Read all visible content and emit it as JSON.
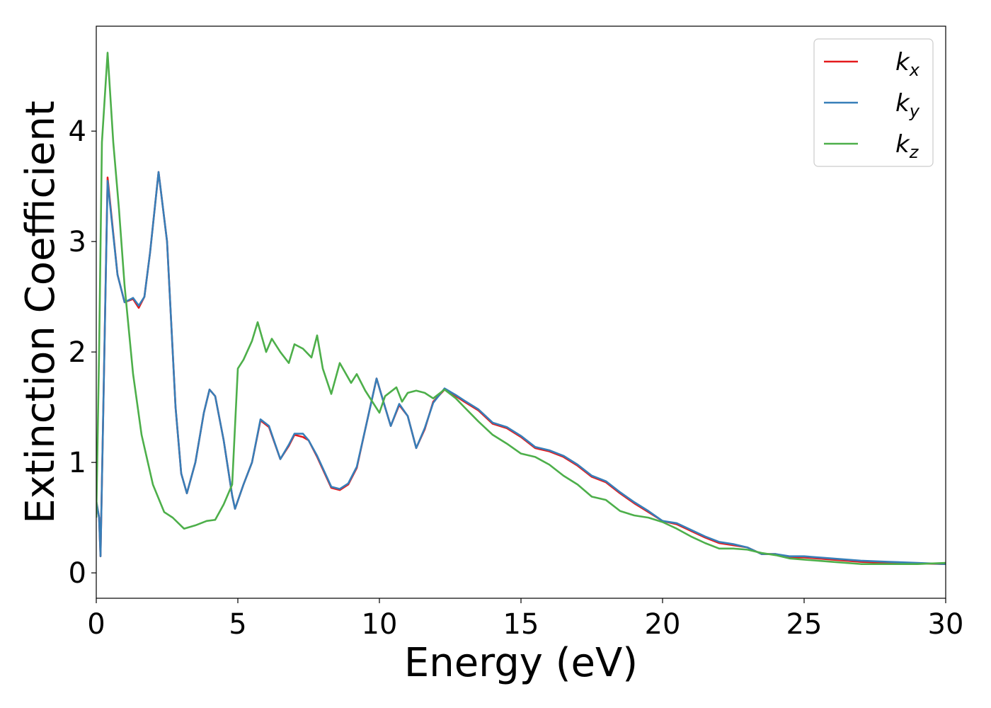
{
  "chart_data": {
    "type": "line",
    "xlabel": "Energy (eV)",
    "ylabel": "Extinction Coefficient",
    "xlim": [
      0,
      30
    ],
    "ylim": [
      -0.23,
      4.95
    ],
    "xticks": [
      0,
      5,
      10,
      15,
      20,
      25,
      30
    ],
    "yticks": [
      0,
      1,
      2,
      3,
      4
    ],
    "legend": "upper right",
    "grid": false,
    "series": [
      {
        "name": "kx",
        "color": "#e41a1c",
        "x": [
          0,
          0.1,
          0.15,
          0.25,
          0.4,
          0.55,
          0.75,
          1.0,
          1.3,
          1.5,
          1.7,
          1.9,
          2.2,
          2.5,
          2.8,
          3.0,
          3.2,
          3.5,
          3.8,
          4.0,
          4.2,
          4.5,
          4.8,
          4.9,
          5.2,
          5.5,
          5.8,
          6.1,
          6.5,
          6.8,
          7.0,
          7.3,
          7.5,
          7.8,
          8.3,
          8.6,
          8.9,
          9.2,
          9.5,
          9.9,
          10.2,
          10.4,
          10.7,
          11.0,
          11.3,
          11.6,
          11.9,
          12.3,
          12.7,
          13.0,
          13.5,
          14,
          14.5,
          15,
          15.5,
          16,
          16.5,
          17,
          17.5,
          18,
          18.5,
          19,
          19.5,
          20,
          20.5,
          21,
          21.5,
          22,
          22.5,
          23,
          23.5,
          24,
          24.5,
          25,
          26,
          27,
          28,
          29,
          30
        ],
        "values": [
          0.65,
          0.5,
          0.15,
          1.5,
          3.58,
          3.2,
          2.7,
          2.45,
          2.48,
          2.4,
          2.5,
          2.9,
          3.63,
          3.0,
          1.5,
          0.9,
          0.72,
          1.0,
          1.45,
          1.66,
          1.6,
          1.2,
          0.7,
          0.58,
          0.8,
          1.0,
          1.38,
          1.32,
          1.03,
          1.15,
          1.25,
          1.23,
          1.2,
          1.05,
          0.77,
          0.75,
          0.8,
          0.95,
          1.3,
          1.76,
          1.5,
          1.33,
          1.52,
          1.42,
          1.13,
          1.3,
          1.55,
          1.66,
          1.6,
          1.55,
          1.47,
          1.35,
          1.31,
          1.23,
          1.13,
          1.1,
          1.05,
          0.97,
          0.87,
          0.82,
          0.72,
          0.63,
          0.55,
          0.47,
          0.44,
          0.38,
          0.32,
          0.27,
          0.25,
          0.23,
          0.17,
          0.17,
          0.14,
          0.14,
          0.12,
          0.1,
          0.09,
          0.085,
          0.08
        ]
      },
      {
        "name": "ky",
        "color": "#377eb8",
        "x": [
          0,
          0.1,
          0.15,
          0.25,
          0.4,
          0.55,
          0.75,
          1.0,
          1.3,
          1.5,
          1.7,
          1.9,
          2.2,
          2.5,
          2.8,
          3.0,
          3.2,
          3.5,
          3.8,
          4.0,
          4.2,
          4.5,
          4.8,
          4.9,
          5.2,
          5.5,
          5.8,
          6.1,
          6.5,
          6.8,
          7.0,
          7.3,
          7.5,
          7.8,
          8.3,
          8.6,
          8.9,
          9.2,
          9.5,
          9.9,
          10.2,
          10.4,
          10.7,
          11.0,
          11.3,
          11.6,
          11.9,
          12.3,
          12.7,
          13.0,
          13.5,
          14,
          14.5,
          15,
          15.5,
          16,
          16.5,
          17,
          17.5,
          18,
          18.5,
          19,
          19.5,
          20,
          20.5,
          21,
          21.5,
          22,
          22.5,
          23,
          23.5,
          24,
          24.5,
          25,
          26,
          27,
          28,
          29,
          30
        ],
        "values": [
          0.65,
          0.5,
          0.15,
          1.5,
          3.55,
          3.18,
          2.7,
          2.45,
          2.49,
          2.42,
          2.5,
          2.9,
          3.63,
          3.0,
          1.5,
          0.9,
          0.72,
          1.0,
          1.45,
          1.66,
          1.6,
          1.2,
          0.7,
          0.58,
          0.8,
          1.0,
          1.39,
          1.33,
          1.03,
          1.16,
          1.26,
          1.26,
          1.2,
          1.06,
          0.78,
          0.76,
          0.81,
          0.96,
          1.3,
          1.76,
          1.5,
          1.33,
          1.53,
          1.42,
          1.13,
          1.31,
          1.54,
          1.67,
          1.61,
          1.56,
          1.48,
          1.36,
          1.32,
          1.24,
          1.14,
          1.11,
          1.06,
          0.98,
          0.88,
          0.83,
          0.73,
          0.64,
          0.56,
          0.47,
          0.45,
          0.39,
          0.33,
          0.28,
          0.26,
          0.23,
          0.17,
          0.17,
          0.15,
          0.15,
          0.13,
          0.11,
          0.1,
          0.09,
          0.08
        ]
      },
      {
        "name": "kz",
        "color": "#4daf4a",
        "x": [
          0,
          0.1,
          0.2,
          0.4,
          0.6,
          0.8,
          1.0,
          1.3,
          1.6,
          2.0,
          2.4,
          2.7,
          2.9,
          3.1,
          3.5,
          3.9,
          4.2,
          4.5,
          4.8,
          5.0,
          5.2,
          5.5,
          5.7,
          6.0,
          6.2,
          6.5,
          6.8,
          7.0,
          7.3,
          7.6,
          7.8,
          8.0,
          8.3,
          8.6,
          9.0,
          9.2,
          9.5,
          10.0,
          10.2,
          10.6,
          10.8,
          11.0,
          11.3,
          11.6,
          11.9,
          12.3,
          12.7,
          13.0,
          13.5,
          14,
          14.5,
          15,
          15.5,
          16,
          16.5,
          17,
          17.5,
          18,
          18.5,
          19,
          19.5,
          20,
          20.5,
          21,
          21.5,
          22,
          22.5,
          23,
          23.5,
          24,
          24.5,
          25,
          26,
          27,
          28,
          29,
          30
        ],
        "values": [
          0.5,
          2.0,
          3.9,
          4.71,
          3.9,
          3.3,
          2.6,
          1.8,
          1.25,
          0.8,
          0.55,
          0.5,
          0.45,
          0.4,
          0.43,
          0.47,
          0.48,
          0.62,
          0.8,
          1.85,
          1.93,
          2.1,
          2.27,
          2.0,
          2.12,
          2.0,
          1.9,
          2.07,
          2.03,
          1.95,
          2.15,
          1.85,
          1.62,
          1.9,
          1.72,
          1.8,
          1.65,
          1.45,
          1.6,
          1.68,
          1.55,
          1.63,
          1.65,
          1.63,
          1.58,
          1.66,
          1.58,
          1.5,
          1.37,
          1.25,
          1.17,
          1.08,
          1.05,
          0.98,
          0.88,
          0.8,
          0.69,
          0.66,
          0.56,
          0.52,
          0.5,
          0.46,
          0.4,
          0.33,
          0.27,
          0.22,
          0.22,
          0.21,
          0.18,
          0.16,
          0.13,
          0.12,
          0.1,
          0.08,
          0.08,
          0.08,
          0.09
        ]
      }
    ]
  }
}
